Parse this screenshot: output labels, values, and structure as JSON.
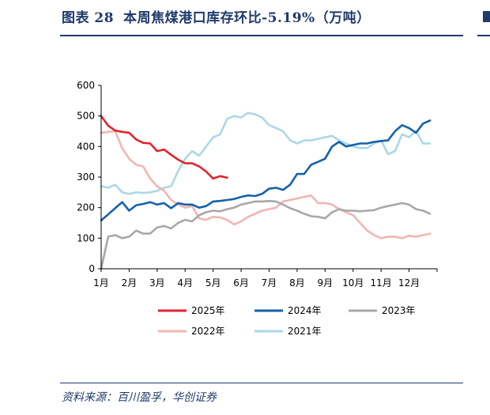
{
  "header": {
    "figure_label": "图表 28",
    "title": "本周焦煤港口库存环比-5.19%（万吨）"
  },
  "footer": {
    "source": "资料来源：百川盈孚，华创证券"
  },
  "chart_data": {
    "type": "line",
    "title": "",
    "xlabel": "",
    "ylabel": "",
    "ylim": [
      0,
      600
    ],
    "yticks": [
      0,
      100,
      200,
      300,
      400,
      500,
      600
    ],
    "xlim": [
      1,
      13
    ],
    "xticks": [
      "1月",
      "2月",
      "3月",
      "4月",
      "5月",
      "6月",
      "7月",
      "8月",
      "9月",
      "10月",
      "11月",
      "12月"
    ],
    "grid": false,
    "legend_position": "bottom",
    "series": [
      {
        "name": "2025年",
        "color": "#e0252e",
        "x": [
          1.0,
          1.25,
          1.5,
          1.75,
          2.0,
          2.25,
          2.5,
          2.75,
          3.0,
          3.25,
          3.5,
          3.75,
          4.0,
          4.25,
          4.5,
          4.75,
          5.0,
          5.25,
          5.5
        ],
        "y": [
          500,
          468,
          452,
          448,
          445,
          423,
          412,
          410,
          385,
          390,
          373,
          357,
          345,
          345,
          335,
          318,
          295,
          303,
          298
        ]
      },
      {
        "name": "2024年",
        "color": "#1561ad",
        "x": [
          1.0,
          1.25,
          1.5,
          1.75,
          2.0,
          2.25,
          2.5,
          2.75,
          3.0,
          3.25,
          3.5,
          3.75,
          4.0,
          4.25,
          4.5,
          4.75,
          5.0,
          5.25,
          5.5,
          5.75,
          6.0,
          6.25,
          6.5,
          6.75,
          7.0,
          7.25,
          7.5,
          7.75,
          8.0,
          8.25,
          8.5,
          8.75,
          9.0,
          9.25,
          9.5,
          9.75,
          10.0,
          10.25,
          10.5,
          10.75,
          11.0,
          11.25,
          11.5,
          11.75,
          12.0,
          12.25,
          12.5,
          12.75
        ],
        "y": [
          158,
          178,
          198,
          218,
          190,
          208,
          212,
          218,
          210,
          215,
          198,
          215,
          210,
          210,
          200,
          205,
          220,
          222,
          225,
          228,
          235,
          240,
          238,
          245,
          262,
          265,
          258,
          275,
          310,
          310,
          340,
          350,
          360,
          400,
          415,
          400,
          405,
          410,
          410,
          415,
          418,
          420,
          450,
          470,
          460,
          445,
          475,
          485
        ]
      },
      {
        "name": "2023年",
        "color": "#a8a8a8",
        "x": [
          1.0,
          1.25,
          1.5,
          1.75,
          2.0,
          2.25,
          2.5,
          2.75,
          3.0,
          3.25,
          3.5,
          3.75,
          4.0,
          4.25,
          4.5,
          4.75,
          5.0,
          5.25,
          5.5,
          5.75,
          6.0,
          6.25,
          6.5,
          6.75,
          7.0,
          7.25,
          7.5,
          7.75,
          8.0,
          8.25,
          8.5,
          8.75,
          9.0,
          9.25,
          9.5,
          9.75,
          10.0,
          10.25,
          10.5,
          10.75,
          11.0,
          11.25,
          11.5,
          11.75,
          12.0,
          12.25,
          12.5,
          12.75
        ],
        "y": [
          0,
          105,
          110,
          100,
          105,
          125,
          115,
          115,
          135,
          140,
          132,
          150,
          160,
          155,
          175,
          185,
          190,
          188,
          195,
          200,
          210,
          215,
          220,
          220,
          222,
          220,
          210,
          198,
          190,
          180,
          172,
          170,
          165,
          185,
          195,
          190,
          190,
          188,
          190,
          192,
          200,
          205,
          210,
          215,
          210,
          195,
          190,
          180
        ]
      },
      {
        "name": "2022年",
        "color": "#f2b5b5",
        "x": [
          1.0,
          1.25,
          1.5,
          1.75,
          2.0,
          2.25,
          2.5,
          2.75,
          3.0,
          3.25,
          3.5,
          3.75,
          4.0,
          4.25,
          4.5,
          4.75,
          5.0,
          5.25,
          5.5,
          5.75,
          6.0,
          6.25,
          6.5,
          6.75,
          7.0,
          7.25,
          7.5,
          7.75,
          8.0,
          8.25,
          8.5,
          8.75,
          9.0,
          9.25,
          9.5,
          9.75,
          10.0,
          10.25,
          10.5,
          10.75,
          11.0,
          11.25,
          11.5,
          11.75,
          12.0,
          12.25,
          12.5,
          12.75
        ],
        "y": [
          445,
          448,
          450,
          395,
          360,
          340,
          335,
          295,
          270,
          255,
          225,
          210,
          200,
          205,
          165,
          160,
          170,
          168,
          160,
          145,
          155,
          170,
          180,
          190,
          195,
          200,
          220,
          225,
          230,
          235,
          240,
          215,
          215,
          210,
          195,
          185,
          175,
          150,
          125,
          110,
          100,
          105,
          105,
          100,
          108,
          105,
          110,
          115
        ]
      },
      {
        "name": "2021年",
        "color": "#add8e6",
        "x": [
          1.0,
          1.25,
          1.5,
          1.75,
          2.0,
          2.25,
          2.5,
          2.75,
          3.0,
          3.25,
          3.5,
          3.75,
          4.0,
          4.25,
          4.5,
          4.75,
          5.0,
          5.25,
          5.5,
          5.75,
          6.0,
          6.25,
          6.5,
          6.75,
          7.0,
          7.25,
          7.5,
          7.75,
          8.0,
          8.25,
          8.5,
          8.75,
          9.0,
          9.25,
          9.5,
          9.75,
          10.0,
          10.25,
          10.5,
          10.75,
          11.0,
          11.25,
          11.5,
          11.75,
          12.0,
          12.25,
          12.5,
          12.75
        ],
        "y": [
          270,
          265,
          275,
          250,
          245,
          250,
          248,
          250,
          255,
          265,
          270,
          320,
          360,
          385,
          370,
          400,
          430,
          440,
          490,
          500,
          495,
          510,
          505,
          495,
          470,
          460,
          450,
          420,
          410,
          420,
          420,
          425,
          430,
          435,
          420,
          410,
          400,
          395,
          395,
          410,
          420,
          375,
          385,
          440,
          430,
          450,
          410,
          410
        ]
      }
    ]
  }
}
